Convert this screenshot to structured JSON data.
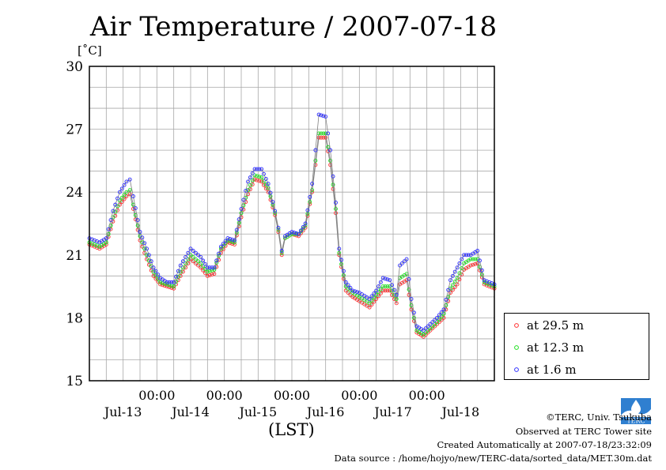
{
  "chart_data": {
    "type": "line",
    "title": "Air Temperature / 2007-07-18",
    "ylabel": "[˚C]",
    "xlabel": "(LST)",
    "ylim": [
      15,
      30
    ],
    "yticks": [
      15,
      18,
      21,
      24,
      27,
      30
    ],
    "x_unit": "days since 2007-07-12 00:00 LST",
    "xlim": [
      0.85,
      6.85
    ],
    "xticks_time": [
      {
        "x": 1.85,
        "label": "00:00"
      },
      {
        "x": 2.85,
        "label": "00:00"
      },
      {
        "x": 3.85,
        "label": "00:00"
      },
      {
        "x": 4.85,
        "label": "00:00"
      },
      {
        "x": 5.85,
        "label": "00:00"
      }
    ],
    "xticks_date": [
      {
        "x": 1.35,
        "label": "Jul-13"
      },
      {
        "x": 2.35,
        "label": "Jul-14"
      },
      {
        "x": 3.35,
        "label": "Jul-15"
      },
      {
        "x": 4.35,
        "label": "Jul-16"
      },
      {
        "x": 5.35,
        "label": "Jul-17"
      },
      {
        "x": 6.35,
        "label": "Jul-18"
      }
    ],
    "grid": true,
    "legend_position": "right, below plot",
    "series": [
      {
        "name": "at 29.5 m",
        "color": "#ff3030",
        "points": [
          [
            0.85,
            21.5
          ],
          [
            1.0,
            21.3
          ],
          [
            1.1,
            21.5
          ],
          [
            1.2,
            22.6
          ],
          [
            1.3,
            23.4
          ],
          [
            1.4,
            23.8
          ],
          [
            1.45,
            23.9
          ],
          [
            1.5,
            23.2
          ],
          [
            1.6,
            21.7
          ],
          [
            1.7,
            20.8
          ],
          [
            1.8,
            20.0
          ],
          [
            1.9,
            19.6
          ],
          [
            2.0,
            19.5
          ],
          [
            2.1,
            19.4
          ],
          [
            2.2,
            20.0
          ],
          [
            2.35,
            20.8
          ],
          [
            2.5,
            20.4
          ],
          [
            2.6,
            20.0
          ],
          [
            2.7,
            20.1
          ],
          [
            2.8,
            21.1
          ],
          [
            2.9,
            21.6
          ],
          [
            3.0,
            21.5
          ],
          [
            3.1,
            22.8
          ],
          [
            3.2,
            23.9
          ],
          [
            3.3,
            24.6
          ],
          [
            3.4,
            24.5
          ],
          [
            3.5,
            24.0
          ],
          [
            3.6,
            22.9
          ],
          [
            3.65,
            22.1
          ],
          [
            3.7,
            21.0
          ],
          [
            3.75,
            21.8
          ],
          [
            3.85,
            22.0
          ],
          [
            3.95,
            21.9
          ],
          [
            4.05,
            22.3
          ],
          [
            4.15,
            24.0
          ],
          [
            4.2,
            25.3
          ],
          [
            4.25,
            26.6
          ],
          [
            4.35,
            26.6
          ],
          [
            4.42,
            25.3
          ],
          [
            4.5,
            23.0
          ],
          [
            4.55,
            21.0
          ],
          [
            4.65,
            19.3
          ],
          [
            4.75,
            19.0
          ],
          [
            4.85,
            18.8
          ],
          [
            5.0,
            18.5
          ],
          [
            5.1,
            18.9
          ],
          [
            5.2,
            19.3
          ],
          [
            5.3,
            19.3
          ],
          [
            5.4,
            18.7
          ],
          [
            5.45,
            19.6
          ],
          [
            5.55,
            19.8
          ],
          [
            5.62,
            18.4
          ],
          [
            5.7,
            17.3
          ],
          [
            5.8,
            17.1
          ],
          [
            5.9,
            17.4
          ],
          [
            6.0,
            17.7
          ],
          [
            6.1,
            18.0
          ],
          [
            6.2,
            19.2
          ],
          [
            6.3,
            19.6
          ],
          [
            6.4,
            20.3
          ],
          [
            6.5,
            20.5
          ],
          [
            6.6,
            20.6
          ],
          [
            6.7,
            19.6
          ],
          [
            6.85,
            19.4
          ]
        ]
      },
      {
        "name": "at 12.3 m",
        "color": "#20e020",
        "points": [
          [
            0.85,
            21.6
          ],
          [
            1.0,
            21.4
          ],
          [
            1.1,
            21.6
          ],
          [
            1.2,
            22.8
          ],
          [
            1.3,
            23.6
          ],
          [
            1.4,
            24.0
          ],
          [
            1.45,
            24.1
          ],
          [
            1.5,
            23.4
          ],
          [
            1.6,
            21.9
          ],
          [
            1.7,
            21.0
          ],
          [
            1.8,
            20.2
          ],
          [
            1.9,
            19.7
          ],
          [
            2.0,
            19.6
          ],
          [
            2.1,
            19.5
          ],
          [
            2.2,
            20.2
          ],
          [
            2.35,
            21.0
          ],
          [
            2.5,
            20.6
          ],
          [
            2.6,
            20.2
          ],
          [
            2.7,
            20.3
          ],
          [
            2.8,
            21.3
          ],
          [
            2.9,
            21.7
          ],
          [
            3.0,
            21.6
          ],
          [
            3.1,
            23.0
          ],
          [
            3.2,
            24.1
          ],
          [
            3.3,
            24.8
          ],
          [
            3.4,
            24.7
          ],
          [
            3.5,
            24.2
          ],
          [
            3.6,
            23.0
          ],
          [
            3.65,
            22.2
          ],
          [
            3.7,
            21.1
          ],
          [
            3.75,
            21.8
          ],
          [
            3.85,
            22.0
          ],
          [
            3.95,
            22.0
          ],
          [
            4.05,
            22.4
          ],
          [
            4.15,
            24.1
          ],
          [
            4.2,
            25.5
          ],
          [
            4.25,
            26.8
          ],
          [
            4.35,
            26.8
          ],
          [
            4.42,
            25.5
          ],
          [
            4.5,
            23.2
          ],
          [
            4.55,
            21.1
          ],
          [
            4.65,
            19.5
          ],
          [
            4.75,
            19.2
          ],
          [
            4.85,
            19.0
          ],
          [
            5.0,
            18.7
          ],
          [
            5.1,
            19.1
          ],
          [
            5.2,
            19.5
          ],
          [
            5.3,
            19.5
          ],
          [
            5.4,
            18.9
          ],
          [
            5.45,
            19.9
          ],
          [
            5.55,
            20.1
          ],
          [
            5.62,
            18.6
          ],
          [
            5.7,
            17.4
          ],
          [
            5.8,
            17.2
          ],
          [
            5.9,
            17.5
          ],
          [
            6.0,
            17.8
          ],
          [
            6.1,
            18.2
          ],
          [
            6.2,
            19.4
          ],
          [
            6.3,
            19.9
          ],
          [
            6.4,
            20.6
          ],
          [
            6.5,
            20.8
          ],
          [
            6.6,
            20.8
          ],
          [
            6.7,
            19.7
          ],
          [
            6.85,
            19.5
          ]
        ]
      },
      {
        "name": "at 1.6 m",
        "color": "#3030ff",
        "points": [
          [
            0.85,
            21.8
          ],
          [
            1.0,
            21.6
          ],
          [
            1.1,
            21.8
          ],
          [
            1.2,
            23.1
          ],
          [
            1.3,
            24.0
          ],
          [
            1.4,
            24.5
          ],
          [
            1.45,
            24.6
          ],
          [
            1.5,
            23.8
          ],
          [
            1.6,
            22.1
          ],
          [
            1.7,
            21.3
          ],
          [
            1.8,
            20.4
          ],
          [
            1.9,
            19.9
          ],
          [
            2.0,
            19.7
          ],
          [
            2.1,
            19.7
          ],
          [
            2.2,
            20.5
          ],
          [
            2.35,
            21.3
          ],
          [
            2.5,
            20.9
          ],
          [
            2.6,
            20.4
          ],
          [
            2.7,
            20.4
          ],
          [
            2.8,
            21.4
          ],
          [
            2.9,
            21.8
          ],
          [
            3.0,
            21.7
          ],
          [
            3.1,
            23.2
          ],
          [
            3.2,
            24.5
          ],
          [
            3.3,
            25.1
          ],
          [
            3.4,
            25.1
          ],
          [
            3.5,
            24.4
          ],
          [
            3.6,
            23.1
          ],
          [
            3.65,
            22.3
          ],
          [
            3.7,
            21.2
          ],
          [
            3.75,
            21.9
          ],
          [
            3.85,
            22.1
          ],
          [
            3.95,
            22.0
          ],
          [
            4.05,
            22.5
          ],
          [
            4.15,
            24.4
          ],
          [
            4.2,
            26.0
          ],
          [
            4.25,
            27.7
          ],
          [
            4.35,
            27.6
          ],
          [
            4.42,
            26.0
          ],
          [
            4.5,
            23.5
          ],
          [
            4.55,
            21.3
          ],
          [
            4.65,
            19.7
          ],
          [
            4.75,
            19.3
          ],
          [
            4.85,
            19.2
          ],
          [
            5.0,
            18.9
          ],
          [
            5.1,
            19.3
          ],
          [
            5.2,
            19.9
          ],
          [
            5.3,
            19.8
          ],
          [
            5.4,
            19.1
          ],
          [
            5.45,
            20.5
          ],
          [
            5.55,
            20.8
          ],
          [
            5.62,
            18.9
          ],
          [
            5.7,
            17.6
          ],
          [
            5.8,
            17.4
          ],
          [
            5.9,
            17.7
          ],
          [
            6.0,
            18.0
          ],
          [
            6.1,
            18.4
          ],
          [
            6.2,
            19.8
          ],
          [
            6.3,
            20.4
          ],
          [
            6.4,
            21.0
          ],
          [
            6.5,
            21.0
          ],
          [
            6.6,
            21.2
          ],
          [
            6.7,
            19.8
          ],
          [
            6.85,
            19.6
          ]
        ]
      }
    ]
  },
  "labels": {
    "title": "Air Temperature / 2007-07-18",
    "unit": "[˚C]",
    "lst": "(LST)"
  },
  "legend": {
    "items": [
      {
        "label": "at 29.5 m",
        "color": "#ff3030"
      },
      {
        "label": "at 12.3 m",
        "color": "#20e020"
      },
      {
        "label": "at 1.6 m",
        "color": "#3030ff"
      }
    ]
  },
  "footer": {
    "copyright": "©TERC, Univ. Tsukuba",
    "observed": "Observed at TERC Tower site",
    "created": "Created Automatically at 2007-07-18/23:32:09",
    "source": "Data source : /home/hojyo/new/TERC-data/sorted_data/MET.30m.dat",
    "logo_text": "TERC"
  }
}
